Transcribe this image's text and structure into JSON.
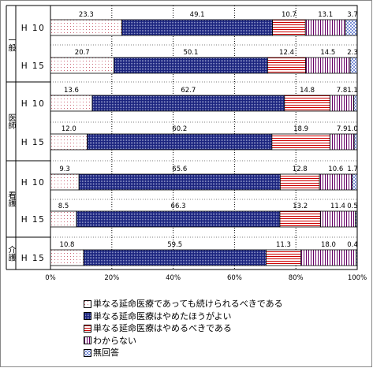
{
  "chart_data": {
    "type": "bar",
    "orientation": "horizontal",
    "stacked": true,
    "percent": true,
    "title": "",
    "xlabel": "",
    "ylabel": "",
    "xlim": [
      0,
      100
    ],
    "x_ticks": [
      "0%",
      "20%",
      "40%",
      "60%",
      "80%",
      "100%"
    ],
    "group_labels": [
      "一般",
      "医師",
      "看護",
      "介護"
    ],
    "rows": [
      {
        "group": "一般",
        "label": "H10",
        "values": [
          23.3,
          49.1,
          10.7,
          13.1,
          3.7
        ]
      },
      {
        "group": "一般",
        "label": "H15",
        "values": [
          20.7,
          50.1,
          12.4,
          14.5,
          2.3
        ]
      },
      {
        "group": "医師",
        "label": "H10",
        "values": [
          13.6,
          62.7,
          14.8,
          7.8,
          1.1
        ]
      },
      {
        "group": "医師",
        "label": "H15",
        "values": [
          12.0,
          60.2,
          18.9,
          7.9,
          1.0
        ]
      },
      {
        "group": "看護",
        "label": "H10",
        "values": [
          9.3,
          65.6,
          12.8,
          10.6,
          1.7
        ]
      },
      {
        "group": "看護",
        "label": "H15",
        "values": [
          8.5,
          66.3,
          13.2,
          11.4,
          0.5
        ]
      },
      {
        "group": "介護",
        "label": "H15",
        "values": [
          10.8,
          59.5,
          11.3,
          18.0,
          0.4
        ]
      }
    ],
    "value_labels": [
      [
        "23.3",
        "49.1",
        "10.7",
        "13.1",
        "3.7"
      ],
      [
        "20.7",
        "50.1",
        "12.4",
        "14.5",
        "2.3"
      ],
      [
        "13.6",
        "62.7",
        "14.8",
        "7.8",
        "1.1"
      ],
      [
        "12.0",
        "60.2",
        "18.9",
        "7.9",
        "1.0"
      ],
      [
        "9.3",
        "65.6",
        "12.8",
        "10.6",
        "1.7"
      ],
      [
        "8.5",
        "66.3",
        "13.2",
        "11.4",
        "0.5"
      ],
      [
        "10.8",
        "59.5",
        "11.3",
        "18.0",
        "0.4"
      ]
    ],
    "series": [
      {
        "name": "単なる延命医療であっても続けられるべきである",
        "pattern": "dots",
        "color": "#cc6677"
      },
      {
        "name": "単なる延命医療はやめたほうがよい",
        "pattern": "navy-mesh",
        "color": "#1a237e"
      },
      {
        "name": "単なる延命医療はやめるべきである",
        "pattern": "red-hlines",
        "color": "#cc0000"
      },
      {
        "name": "わからない",
        "pattern": "purple-vlines",
        "color": "#660066"
      },
      {
        "name": "無回答",
        "pattern": "blue-checker",
        "color": "#7a8fd6"
      }
    ],
    "grid": true,
    "legend_position": "bottom"
  }
}
